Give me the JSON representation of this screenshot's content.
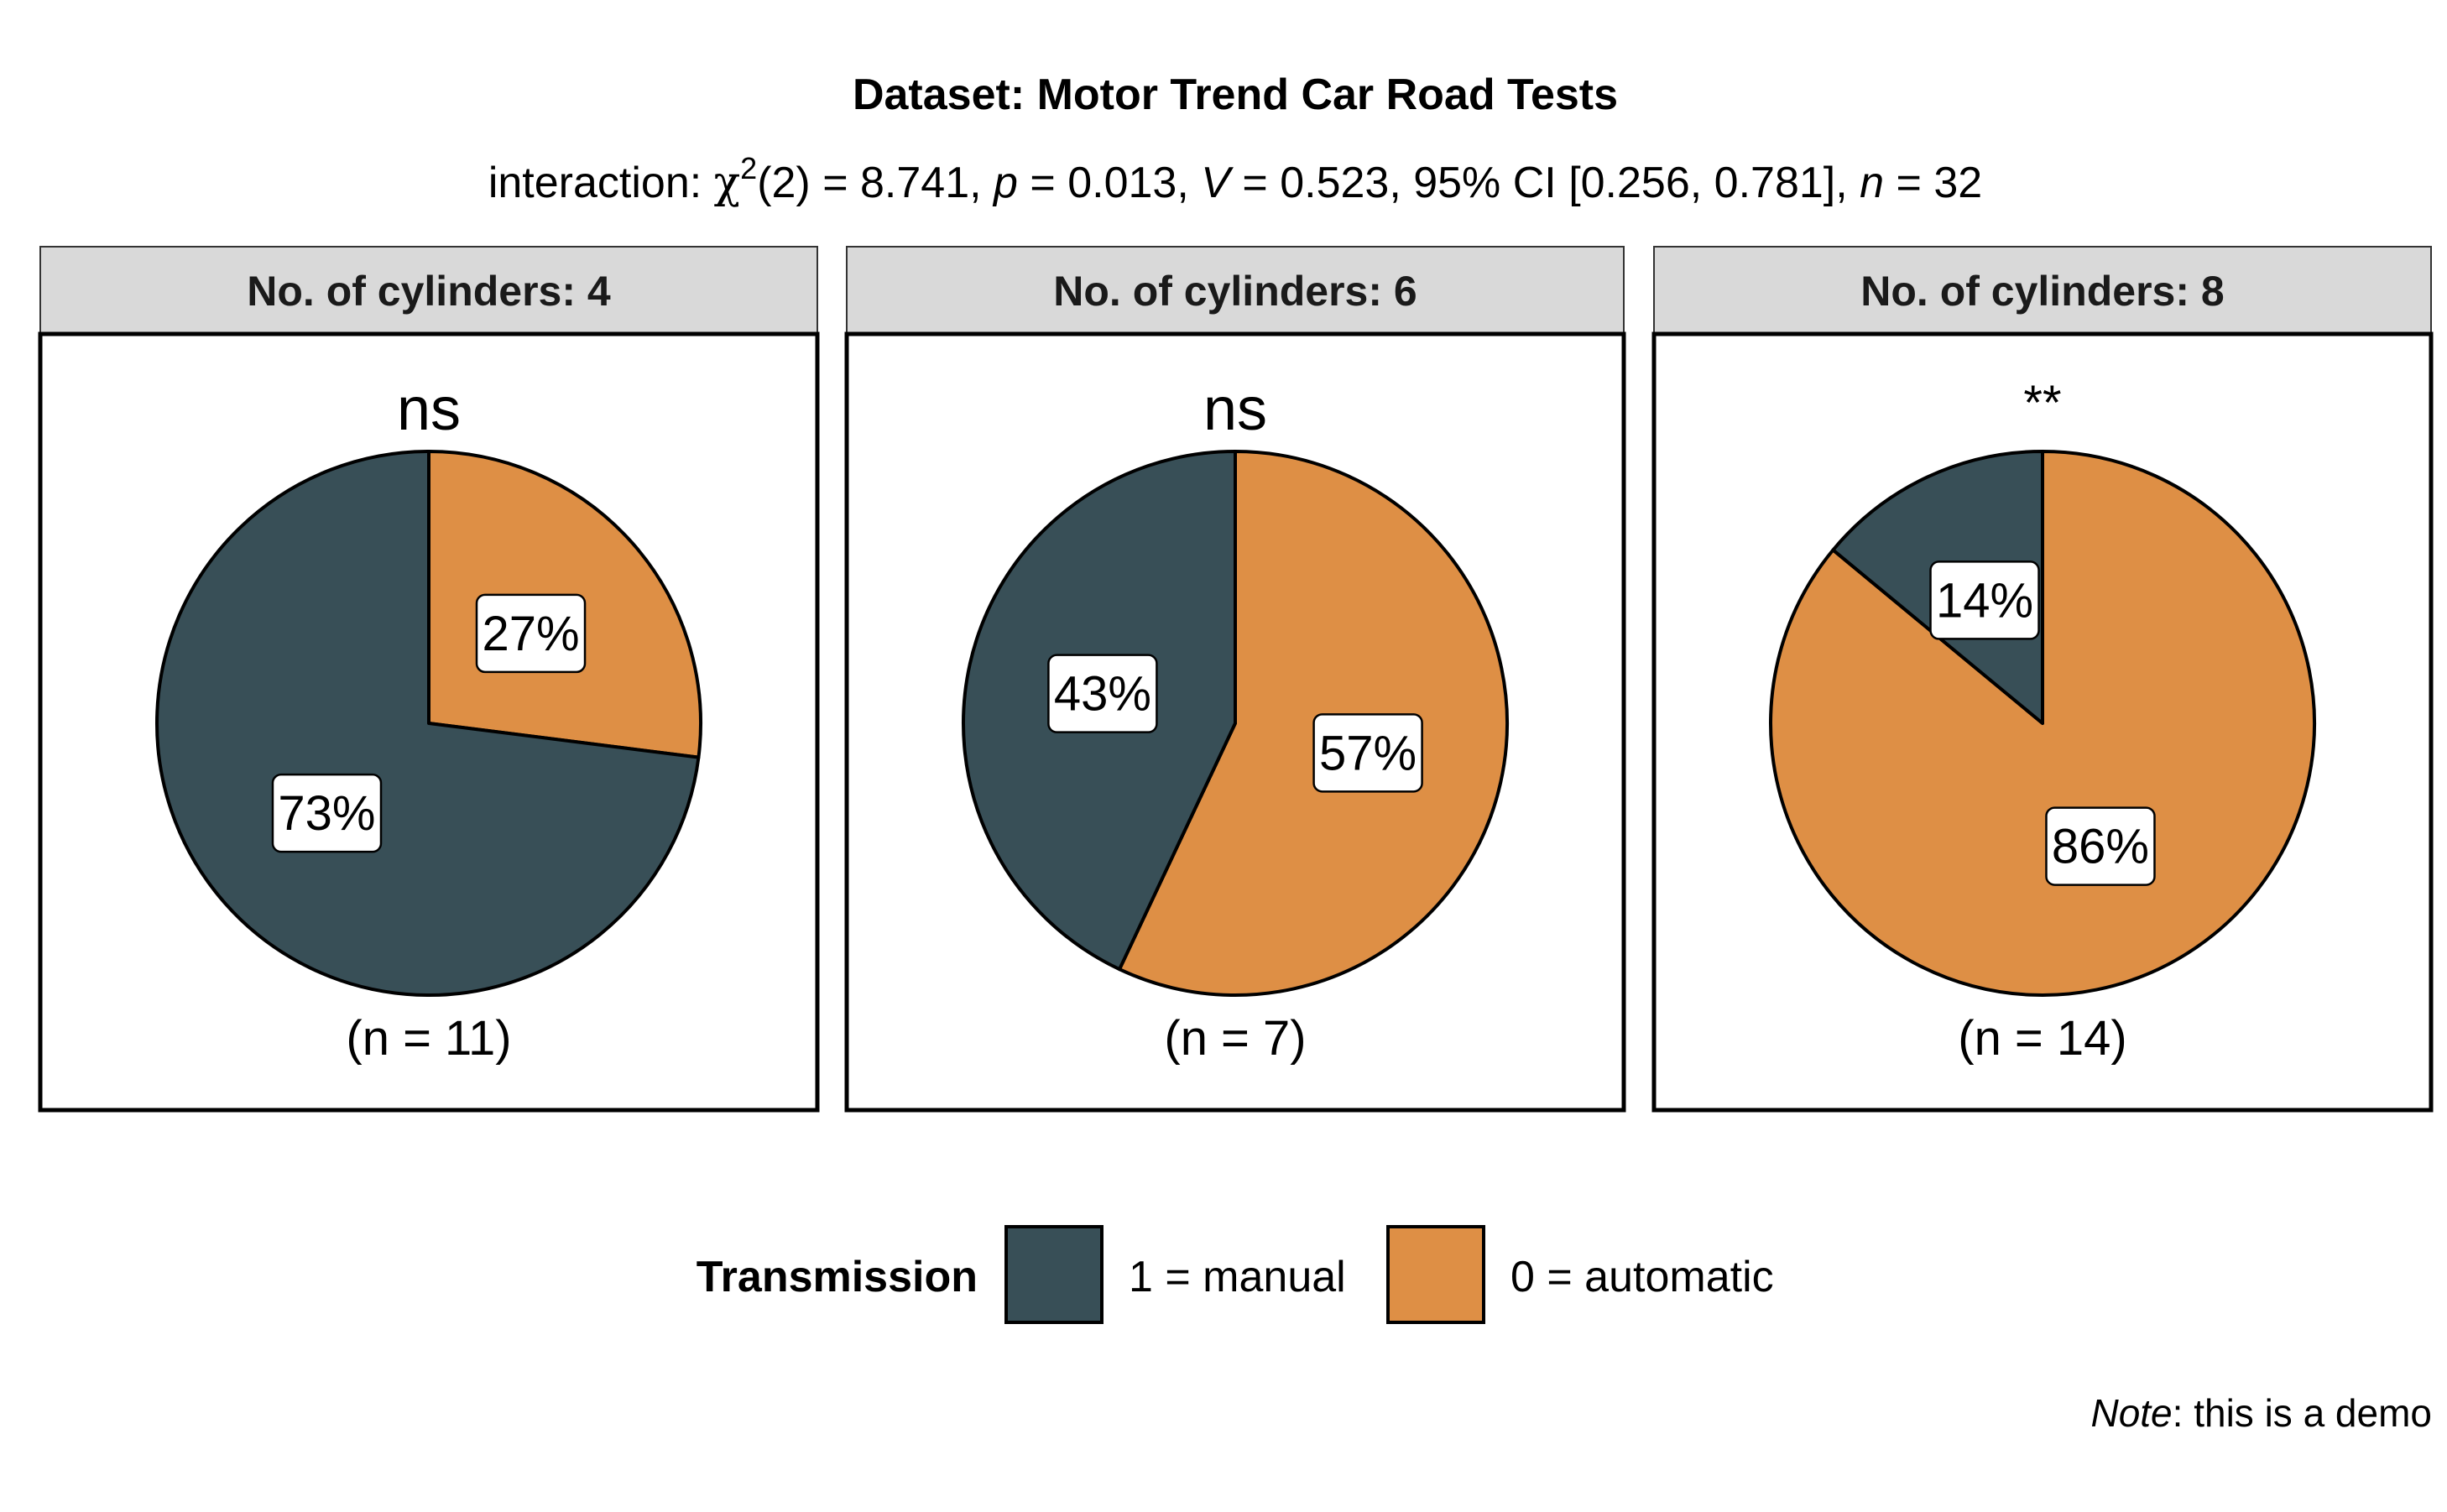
{
  "chart_data": {
    "type": "pie",
    "title": "Dataset: Motor Trend Car Road Tests",
    "subtitle": {
      "prefix": "interaction: ",
      "chi_symbol": "χ",
      "chi_superscript": "2",
      "df_and_statistic": "(2) = 8.741, ",
      "p_symbol": "p",
      "p_value": " = 0.013, ",
      "v_symbol": "V",
      "v_value": " = 0.523, 95% CI [0.256, 0.781], ",
      "n_symbol": "n",
      "n_value": " = 32"
    },
    "legend": {
      "title": "Transmission",
      "position": "bottom",
      "entries": [
        {
          "label": "1 = manual",
          "color": "#384f57"
        },
        {
          "label": "0 = automatic",
          "color": "#de8f45"
        }
      ]
    },
    "categories": [
      "1 = manual",
      "0 = automatic"
    ],
    "facets": [
      {
        "strip": "No. of cylinders: 4",
        "significance": "ns",
        "n_label": "(n = 11)",
        "slices": [
          {
            "category": "0 = automatic",
            "value": 27,
            "label": "27%"
          },
          {
            "category": "1 = manual",
            "value": 73,
            "label": "73%"
          }
        ]
      },
      {
        "strip": "No. of cylinders: 6",
        "significance": "ns",
        "n_label": "(n = 7)",
        "slices": [
          {
            "category": "0 = automatic",
            "value": 57,
            "label": "57%"
          },
          {
            "category": "1 = manual",
            "value": 43,
            "label": "43%"
          }
        ]
      },
      {
        "strip": "No. of cylinders: 8",
        "significance": "**",
        "n_label": "(n = 14)",
        "slices": [
          {
            "category": "0 = automatic",
            "value": 86,
            "label": "86%"
          },
          {
            "category": "1 = manual",
            "value": 14,
            "label": "14%"
          }
        ]
      }
    ],
    "caption": {
      "italic": "Note",
      "text": ": this is a demo"
    },
    "colors": {
      "strip_background": "#d9d9d9",
      "panel_border": "#000000"
    }
  }
}
